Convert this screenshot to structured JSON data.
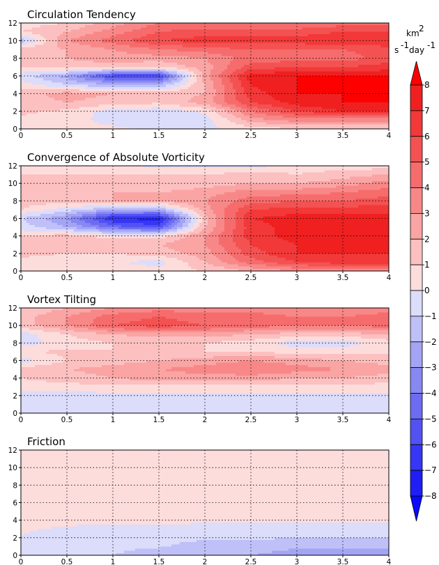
{
  "chart_data": [
    {
      "type": "heatmap",
      "title": "Circulation Tendency",
      "xlim": [
        0,
        4
      ],
      "ylim": [
        0,
        12
      ],
      "x_ticks": [
        "0",
        "0.5",
        "1",
        "1.5",
        "2",
        "2.5",
        "3",
        "3.5",
        "4"
      ],
      "y_ticks": [
        "0",
        "2",
        "4",
        "6",
        "8",
        "10",
        "12"
      ],
      "grid": "dotted",
      "x": [
        0,
        0.5,
        1,
        1.5,
        2,
        2.5,
        3,
        3.5,
        4
      ],
      "y": [
        0,
        1,
        2,
        3,
        4,
        5,
        6,
        7,
        8,
        9,
        10,
        11,
        12
      ],
      "z": [
        [
          0.5,
          0.5,
          0.3,
          -0.3,
          -0.3,
          0.5,
          0.8,
          0.8,
          0.8
        ],
        [
          0.8,
          0.5,
          -0.5,
          -0.8,
          -0.5,
          2.5,
          3.5,
          3.5,
          3.5
        ],
        [
          1.2,
          0.8,
          -0.5,
          -0.8,
          0.2,
          4.0,
          6.0,
          7.0,
          7.0
        ],
        [
          1.5,
          2.0,
          1.5,
          1.2,
          2.5,
          6.0,
          7.5,
          8.0,
          8.0
        ],
        [
          1.5,
          2.5,
          2.0,
          1.5,
          2.0,
          6.5,
          8.0,
          8.0,
          8.0
        ],
        [
          0.5,
          -1.0,
          -2.0,
          -2.0,
          2.0,
          7.0,
          8.0,
          8.0,
          8.0
        ],
        [
          -0.5,
          -2.5,
          -6.0,
          -6.0,
          2.5,
          7.5,
          8.0,
          8.0,
          8.0
        ],
        [
          1.0,
          1.5,
          1.5,
          1.0,
          2.5,
          5.5,
          6.0,
          6.0,
          6.5
        ],
        [
          1.5,
          2.0,
          2.5,
          2.5,
          3.0,
          4.5,
          4.5,
          4.5,
          5.5
        ],
        [
          1.5,
          2.0,
          3.0,
          4.0,
          4.5,
          5.0,
          5.0,
          5.0,
          5.5
        ],
        [
          -1.5,
          3.0,
          4.5,
          6.0,
          6.5,
          6.5,
          6.5,
          7.0,
          7.0
        ],
        [
          1.0,
          2.0,
          3.5,
          5.0,
          5.5,
          5.5,
          5.5,
          6.0,
          6.0
        ],
        [
          0.5,
          1.0,
          2.5,
          4.0,
          4.0,
          4.0,
          4.0,
          4.5,
          4.5
        ]
      ]
    },
    {
      "type": "heatmap",
      "title": "Convergence of Absolute Vorticity",
      "xlim": [
        0,
        4
      ],
      "ylim": [
        0,
        12
      ],
      "x_ticks": [
        "0",
        "0.5",
        "1",
        "1.5",
        "2",
        "2.5",
        "3",
        "3.5",
        "4"
      ],
      "y_ticks": [
        "0",
        "2",
        "4",
        "6",
        "8",
        "10",
        "12"
      ],
      "grid": "dotted",
      "x": [
        0,
        0.5,
        1,
        1.5,
        2,
        2.5,
        3,
        3.5,
        4
      ],
      "y": [
        0,
        1,
        2,
        3,
        4,
        5,
        6,
        7,
        8,
        9,
        10,
        11,
        12
      ],
      "z": [
        [
          0.5,
          0.5,
          0.5,
          0.5,
          1.0,
          2.0,
          3.0,
          3.5,
          3.5
        ],
        [
          0.8,
          0.5,
          0.2,
          -0.5,
          2.0,
          4.5,
          6.0,
          6.5,
          6.5
        ],
        [
          1.2,
          1.0,
          1.0,
          1.5,
          2.5,
          5.5,
          7.0,
          7.0,
          7.0
        ],
        [
          1.5,
          2.0,
          2.0,
          2.0,
          3.0,
          6.0,
          7.0,
          7.0,
          7.0
        ],
        [
          1.0,
          1.5,
          0.5,
          0.5,
          3.0,
          6.5,
          7.5,
          7.5,
          7.5
        ],
        [
          -0.5,
          -2.0,
          -4.5,
          -5.5,
          2.0,
          6.5,
          7.5,
          7.5,
          7.5
        ],
        [
          -1.0,
          -3.0,
          -7.0,
          -7.5,
          1.5,
          7.0,
          7.5,
          7.5,
          7.5
        ],
        [
          1.0,
          -0.5,
          -2.0,
          -2.0,
          2.5,
          6.0,
          6.5,
          6.5,
          6.5
        ],
        [
          1.5,
          1.5,
          2.0,
          2.0,
          3.0,
          4.5,
          5.0,
          5.0,
          5.5
        ],
        [
          1.5,
          2.0,
          2.0,
          2.0,
          2.5,
          3.5,
          3.5,
          4.0,
          4.5
        ],
        [
          1.0,
          1.0,
          1.0,
          1.0,
          1.5,
          2.0,
          2.0,
          2.5,
          3.5
        ],
        [
          1.0,
          1.0,
          1.0,
          1.0,
          1.0,
          1.5,
          1.0,
          1.5,
          2.0
        ],
        [
          0.5,
          0.5,
          0.5,
          -0.5,
          -0.5,
          -0.5,
          0.5,
          0.5,
          0.5
        ]
      ]
    },
    {
      "type": "heatmap",
      "title": "Vortex Tilting",
      "xlim": [
        0,
        4
      ],
      "ylim": [
        0,
        12
      ],
      "x_ticks": [
        "0",
        "0.5",
        "1",
        "1.5",
        "2",
        "2.5",
        "3",
        "3.5",
        "4"
      ],
      "y_ticks": [
        "0",
        "2",
        "4",
        "6",
        "8",
        "10",
        "12"
      ],
      "grid": "dotted",
      "x": [
        0,
        0.5,
        1,
        1.5,
        2,
        2.5,
        3,
        3.5,
        4
      ],
      "y": [
        0,
        1,
        2,
        3,
        4,
        5,
        6,
        7,
        8,
        9,
        10,
        11,
        12
      ],
      "z": [
        [
          -0.8,
          -0.8,
          -0.8,
          -0.8,
          -0.8,
          -0.8,
          -0.8,
          -0.8,
          -0.8
        ],
        [
          -0.6,
          -0.6,
          -0.6,
          -0.6,
          -0.6,
          -0.6,
          -0.6,
          -0.6,
          -0.6
        ],
        [
          -0.4,
          -0.4,
          -0.4,
          -0.4,
          -0.3,
          -0.2,
          -0.3,
          -0.3,
          -0.3
        ],
        [
          0.5,
          0.6,
          0.7,
          0.7,
          0.7,
          0.7,
          0.6,
          0.6,
          0.6
        ],
        [
          1.0,
          1.5,
          2.0,
          2.5,
          2.5,
          2.5,
          2.0,
          2.0,
          1.5
        ],
        [
          1.5,
          2.0,
          2.5,
          3.0,
          3.5,
          4.0,
          3.5,
          3.0,
          2.5
        ],
        [
          -0.5,
          1.0,
          1.5,
          2.0,
          2.5,
          3.0,
          2.5,
          2.0,
          1.5
        ],
        [
          1.0,
          1.2,
          1.0,
          1.0,
          1.0,
          1.0,
          0.5,
          0.5,
          0.8
        ],
        [
          -0.5,
          0.5,
          1.0,
          1.0,
          1.0,
          0.5,
          -0.5,
          -0.5,
          0.5
        ],
        [
          -0.5,
          1.0,
          2.0,
          2.5,
          2.5,
          2.0,
          1.5,
          1.5,
          2.0
        ],
        [
          1.5,
          3.0,
          5.0,
          5.5,
          5.0,
          4.5,
          4.0,
          4.0,
          4.5
        ],
        [
          1.5,
          3.0,
          4.5,
          5.0,
          4.5,
          4.5,
          4.0,
          4.0,
          4.5
        ],
        [
          1.0,
          2.0,
          3.0,
          3.5,
          3.5,
          3.5,
          3.0,
          3.0,
          3.5
        ]
      ]
    },
    {
      "type": "heatmap",
      "title": "Friction",
      "xlim": [
        0,
        4
      ],
      "ylim": [
        0,
        12
      ],
      "x_ticks": [
        "0",
        "0.5",
        "1",
        "1.5",
        "2",
        "2.5",
        "3",
        "3.5",
        "4"
      ],
      "y_ticks": [
        "0",
        "2",
        "4",
        "6",
        "8",
        "10",
        "12"
      ],
      "grid": "dotted",
      "x": [
        0,
        0.5,
        1,
        1.5,
        2,
        2.5,
        3,
        3.5,
        4
      ],
      "y": [
        0,
        1,
        2,
        3,
        4,
        5,
        6,
        7,
        8,
        9,
        10,
        11,
        12
      ],
      "z": [
        [
          -0.5,
          -1.0,
          -1.0,
          -1.5,
          -2.0,
          -2.0,
          -2.5,
          -2.5,
          -2.5
        ],
        [
          -0.4,
          -0.8,
          -0.8,
          -0.9,
          -1.5,
          -1.5,
          -1.8,
          -1.8,
          -1.8
        ],
        [
          0.0,
          -0.6,
          -0.6,
          -0.6,
          -0.8,
          -0.8,
          -1.0,
          -1.0,
          -1.0
        ],
        [
          0.1,
          -0.1,
          -0.2,
          -0.2,
          -0.4,
          -0.5,
          -0.5,
          -0.5,
          -0.5
        ],
        [
          0.2,
          0.2,
          0.2,
          0.2,
          0.2,
          0.2,
          0.2,
          0.2,
          0.2
        ],
        [
          0.2,
          0.2,
          0.2,
          0.2,
          0.2,
          0.2,
          0.2,
          0.2,
          0.2
        ],
        [
          0.2,
          0.2,
          0.2,
          0.2,
          0.2,
          0.2,
          0.2,
          0.2,
          0.2
        ],
        [
          0.2,
          0.2,
          0.2,
          0.2,
          0.2,
          0.2,
          0.2,
          0.2,
          0.2
        ],
        [
          0.2,
          0.2,
          0.2,
          0.2,
          0.2,
          0.2,
          0.2,
          0.2,
          0.2
        ],
        [
          0.2,
          0.2,
          0.2,
          0.2,
          0.2,
          0.2,
          0.2,
          0.2,
          0.2
        ],
        [
          0.2,
          0.2,
          0.2,
          0.2,
          0.2,
          0.2,
          0.2,
          0.2,
          0.2
        ],
        [
          0.2,
          0.2,
          0.2,
          0.2,
          0.2,
          0.2,
          0.2,
          0.2,
          0.2
        ],
        [
          0.2,
          0.2,
          0.2,
          0.2,
          0.2,
          0.2,
          0.2,
          0.2,
          0.2
        ]
      ]
    }
  ],
  "colorbar": {
    "unit_top": "km",
    "unit_top_sup": "2",
    "unit_bottom": "s",
    "unit_bottom_sup1": "-1",
    "unit_bottom_mid": "day",
    "unit_bottom_sup2": "-1",
    "ticks": [
      "8",
      "7",
      "6",
      "5",
      "4",
      "3",
      "2",
      "1",
      "0",
      "−1",
      "−2",
      "−3",
      "−4",
      "−5",
      "−6",
      "−7",
      "−8"
    ],
    "levels": [
      -8,
      -7,
      -6,
      -5,
      -4,
      -3,
      -2,
      -1,
      0,
      1,
      2,
      3,
      4,
      5,
      6,
      7,
      8
    ],
    "colors_negative": [
      "#0a0aff",
      "#1e1ef5",
      "#3636f4",
      "#5252f2",
      "#6c6cf2",
      "#8888f3",
      "#a4a4f5",
      "#c0c0f8",
      "#dcdcfb"
    ],
    "colors_positive": [
      "#fddcdc",
      "#fcc0c0",
      "#faa4a4",
      "#f88888",
      "#f66c6c",
      "#f45252",
      "#f23838",
      "#f02020",
      "#ff0000"
    ]
  }
}
